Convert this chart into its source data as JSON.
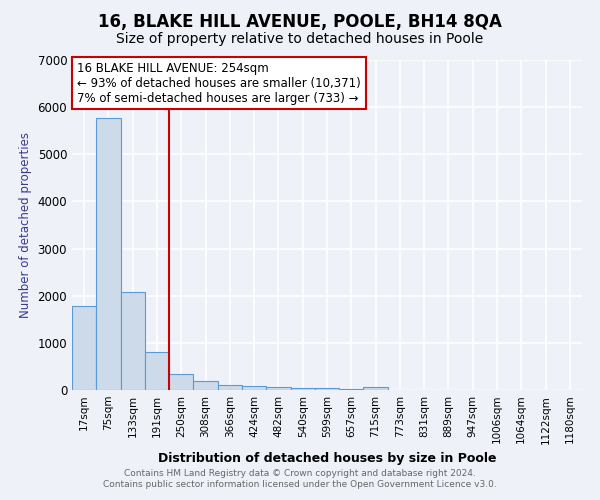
{
  "title": "16, BLAKE HILL AVENUE, POOLE, BH14 8QA",
  "subtitle": "Size of property relative to detached houses in Poole",
  "xlabel": "Distribution of detached houses by size in Poole",
  "ylabel": "Number of detached properties",
  "bar_labels": [
    "17sqm",
    "75sqm",
    "133sqm",
    "191sqm",
    "250sqm",
    "308sqm",
    "366sqm",
    "424sqm",
    "482sqm",
    "540sqm",
    "599sqm",
    "657sqm",
    "715sqm",
    "773sqm",
    "831sqm",
    "889sqm",
    "947sqm",
    "1006sqm",
    "1064sqm",
    "1122sqm",
    "1180sqm"
  ],
  "bar_values": [
    1780,
    5780,
    2080,
    800,
    340,
    195,
    110,
    80,
    60,
    45,
    35,
    30,
    70,
    0,
    0,
    0,
    0,
    0,
    0,
    0,
    0
  ],
  "bar_color": "#ccdaea",
  "bar_edge_color": "#5b9bd5",
  "vline_x": 3.5,
  "vline_color": "#cc0000",
  "annotation_title": "16 BLAKE HILL AVENUE: 254sqm",
  "annotation_line2": "← 93% of detached houses are smaller (10,371)",
  "annotation_line3": "7% of semi-detached houses are larger (733) →",
  "annotation_box_color": "#cc0000",
  "annotation_bg": "#ffffff",
  "ylim": [
    0,
    7000
  ],
  "footer1": "Contains HM Land Registry data © Crown copyright and database right 2024.",
  "footer2": "Contains public sector information licensed under the Open Government Licence v3.0.",
  "background_color": "#eef2f8",
  "grid_color": "#ffffff",
  "title_fontsize": 12,
  "subtitle_fontsize": 10
}
